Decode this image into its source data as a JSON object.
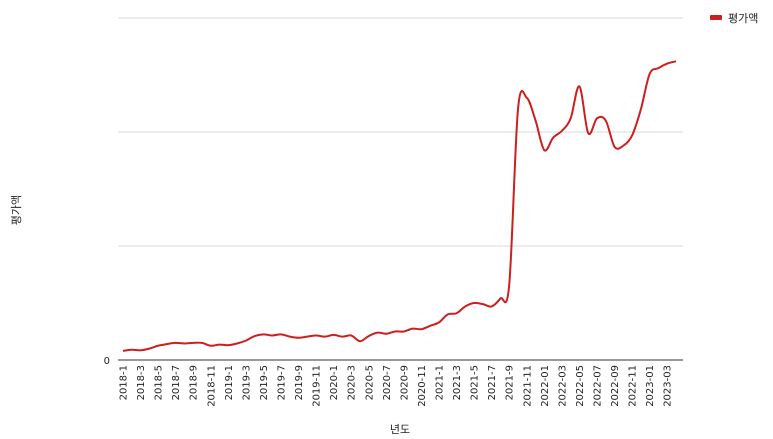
{
  "chart_data": {
    "type": "line",
    "xlabel": "년도",
    "ylabel": "평가액",
    "legend_position": "top-right",
    "grid": true,
    "y_ticks": [
      "0"
    ],
    "x": [
      "2018-1",
      "2018-2",
      "2018-3",
      "2018-4",
      "2018-5",
      "2018-6",
      "2018-7",
      "2018-8",
      "2018-9",
      "2018-10",
      "2018-11",
      "2018-12",
      "2019-1",
      "2019-2",
      "2019-3",
      "2019-4",
      "2019-5",
      "2019-6",
      "2019-7",
      "2019-8",
      "2019-9",
      "2019-10",
      "2019-11",
      "2019-12",
      "2020-1",
      "2020-2",
      "2020-3",
      "2020-4",
      "2020-5",
      "2020-6",
      "2020-7",
      "2020-8",
      "2020-9",
      "2020-10",
      "2020-11",
      "2020-12",
      "2021-1",
      "2021-2",
      "2021-3",
      "2021-4",
      "2021-5",
      "2021-6",
      "2021-7",
      "2021-8",
      "2021-9",
      "2021-10",
      "2021-11",
      "2021-12",
      "2022-01",
      "2022-02",
      "2022-03",
      "2022-04",
      "2022-05",
      "2022-06",
      "2022-07",
      "2022-08",
      "2022-09",
      "2022-10",
      "2022-11",
      "2022-12",
      "2023-01",
      "2023-02",
      "2023-03",
      "2023-04"
    ],
    "x_tick_labels": [
      "2018-1",
      "2018-3",
      "2018-5",
      "2018-7",
      "2018-9",
      "2018-11",
      "2019-1",
      "2019-3",
      "2019-5",
      "2019-7",
      "2019-9",
      "2019-11",
      "2020-1",
      "2020-3",
      "2020-5",
      "2020-7",
      "2020-9",
      "2020-11",
      "2021-1",
      "2021-3",
      "2021-5",
      "2021-7",
      "2021-9",
      "2021-11",
      "2022-01",
      "2022-03",
      "2022-05",
      "2022-07",
      "2022-09",
      "2022-11",
      "2023-01",
      "2023-03"
    ],
    "y_max": 3,
    "series": [
      {
        "name": "평가액",
        "color": "#cc1f1f",
        "values": [
          0.08,
          0.09,
          0.085,
          0.1,
          0.125,
          0.14,
          0.15,
          0.145,
          0.15,
          0.15,
          0.125,
          0.135,
          0.13,
          0.145,
          0.17,
          0.21,
          0.225,
          0.215,
          0.225,
          0.205,
          0.195,
          0.205,
          0.215,
          0.205,
          0.22,
          0.205,
          0.215,
          0.165,
          0.21,
          0.24,
          0.23,
          0.25,
          0.25,
          0.275,
          0.27,
          0.3,
          0.33,
          0.4,
          0.41,
          0.47,
          0.5,
          0.49,
          0.47,
          0.54,
          0.66,
          2.2,
          2.3,
          2.1,
          1.84,
          1.95,
          2.01,
          2.12,
          2.4,
          1.99,
          2.12,
          2.1,
          1.87,
          1.88,
          1.97,
          2.2,
          2.51,
          2.56,
          2.6,
          2.62
        ]
      }
    ]
  }
}
